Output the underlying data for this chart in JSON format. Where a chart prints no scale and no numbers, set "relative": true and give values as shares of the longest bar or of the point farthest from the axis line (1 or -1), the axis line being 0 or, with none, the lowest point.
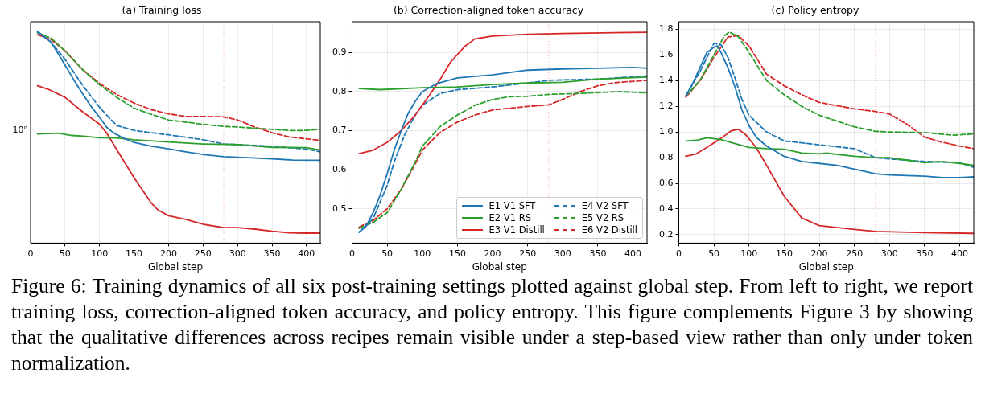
{
  "chart_data": [
    {
      "type": "line",
      "title": "(a) Training loss",
      "xlabel": "Global step",
      "relative": true,
      "grid": "x",
      "xlim": [
        0,
        420
      ],
      "xticks": [
        0,
        50,
        100,
        150,
        200,
        250,
        300,
        350,
        400
      ],
      "ref_lines": [
        {
          "axis": "x",
          "value": 280,
          "color": "#f4a0a0",
          "line_style": "dotted"
        }
      ],
      "annotations": [
        "10⁰"
      ],
      "series": [
        {
          "color": "#1f77b4",
          "line_style": "solid",
          "x": [
            10,
            30,
            40,
            50,
            62,
            75,
            87,
            100,
            110,
            120,
            135,
            150,
            175,
            200,
            225,
            250,
            280,
            320,
            350,
            380,
            420
          ],
          "values": [
            1.0,
            0.947,
            0.894,
            0.84,
            0.774,
            0.707,
            0.648,
            0.594,
            0.548,
            0.521,
            0.495,
            0.475,
            0.457,
            0.445,
            0.431,
            0.418,
            0.408,
            0.402,
            0.398,
            0.392,
            0.391
          ]
        },
        {
          "color": "#2ca02c",
          "line_style": "solid",
          "x": [
            10,
            40,
            60,
            80,
            100,
            125,
            150,
            200,
            250,
            300,
            350,
            400,
            420
          ],
          "values": [
            0.515,
            0.519,
            0.508,
            0.504,
            0.497,
            0.496,
            0.488,
            0.477,
            0.468,
            0.465,
            0.452,
            0.451,
            0.439
          ]
        },
        {
          "color": "#d62728",
          "line_style": "solid",
          "x": [
            10,
            25,
            50,
            75,
            100,
            110,
            125,
            150,
            175,
            185,
            200,
            225,
            250,
            280,
            300,
            325,
            350,
            375,
            400,
            420
          ],
          "values": [
            0.743,
            0.727,
            0.688,
            0.621,
            0.561,
            0.521,
            0.441,
            0.309,
            0.189,
            0.156,
            0.129,
            0.112,
            0.089,
            0.073,
            0.073,
            0.066,
            0.056,
            0.049,
            0.047,
            0.047
          ]
        },
        {
          "color": "#1f77b4",
          "line_style": "dashed",
          "x": [
            10,
            30,
            50,
            75,
            100,
            115,
            125,
            150,
            175,
            200,
            250,
            280,
            300,
            350,
            400,
            420
          ],
          "values": [
            0.997,
            0.947,
            0.867,
            0.747,
            0.641,
            0.588,
            0.555,
            0.532,
            0.521,
            0.511,
            0.488,
            0.468,
            0.465,
            0.457,
            0.444,
            0.431
          ]
        },
        {
          "color": "#2ca02c",
          "line_style": "dashed",
          "x": [
            10,
            30,
            50,
            75,
            100,
            125,
            150,
            175,
            200,
            250,
            280,
            300,
            350,
            380,
            400,
            420
          ],
          "values": [
            0.993,
            0.967,
            0.907,
            0.82,
            0.747,
            0.688,
            0.637,
            0.608,
            0.581,
            0.561,
            0.551,
            0.548,
            0.537,
            0.531,
            0.532,
            0.537
          ]
        },
        {
          "color": "#d62728",
          "line_style": "dashed",
          "x": [
            10,
            30,
            50,
            75,
            100,
            125,
            150,
            175,
            200,
            225,
            250,
            280,
            300,
            325,
            350,
            375,
            400,
            420
          ],
          "values": [
            0.984,
            0.96,
            0.907,
            0.82,
            0.754,
            0.701,
            0.661,
            0.63,
            0.61,
            0.598,
            0.598,
            0.596,
            0.581,
            0.548,
            0.521,
            0.501,
            0.492,
            0.485
          ]
        }
      ]
    },
    {
      "type": "line",
      "title": "(b) Correction-aligned token accuracy",
      "xlabel": "Global step",
      "grid": true,
      "legend": "bottom right",
      "xlim": [
        0,
        420
      ],
      "xticks": [
        0,
        50,
        100,
        150,
        200,
        250,
        300,
        350,
        400
      ],
      "ylim": [
        0.412,
        0.979
      ],
      "yticks": [
        0.5,
        0.6,
        0.7,
        0.8,
        0.9
      ],
      "ref_lines": [
        {
          "axis": "x",
          "value": 280,
          "color": "#f4a0a0",
          "line_style": "dotted"
        }
      ],
      "series": [
        {
          "name": "E1 V1 SFT",
          "color": "#1f77b4",
          "line_style": "solid",
          "x": [
            10,
            20,
            30,
            40,
            50,
            60,
            70,
            80,
            90,
            100,
            120,
            150,
            200,
            250,
            300,
            350,
            400,
            420
          ],
          "values": [
            0.44,
            0.455,
            0.49,
            0.535,
            0.59,
            0.65,
            0.7,
            0.745,
            0.775,
            0.8,
            0.82,
            0.835,
            0.843,
            0.855,
            0.858,
            0.86,
            0.862,
            0.86
          ]
        },
        {
          "name": "E2 V1 RS",
          "color": "#2ca02c",
          "line_style": "solid",
          "x": [
            10,
            40,
            100,
            150,
            200,
            250,
            300,
            350,
            420
          ],
          "values": [
            0.808,
            0.805,
            0.81,
            0.812,
            0.818,
            0.822,
            0.824,
            0.832,
            0.837
          ]
        },
        {
          "name": "E3 V1 Distill",
          "color": "#d62728",
          "line_style": "solid",
          "x": [
            10,
            30,
            50,
            70,
            90,
            110,
            125,
            140,
            160,
            175,
            200,
            250,
            300,
            420
          ],
          "values": [
            0.641,
            0.65,
            0.67,
            0.7,
            0.74,
            0.79,
            0.83,
            0.875,
            0.915,
            0.935,
            0.942,
            0.947,
            0.949,
            0.952
          ]
        },
        {
          "name": "E4 V2 SFT",
          "color": "#1f77b4",
          "line_style": "dashed",
          "x": [
            10,
            30,
            50,
            60,
            75,
            90,
            100,
            125,
            150,
            200,
            250,
            280,
            350,
            420
          ],
          "values": [
            0.44,
            0.475,
            0.56,
            0.62,
            0.69,
            0.74,
            0.765,
            0.795,
            0.805,
            0.812,
            0.822,
            0.829,
            0.832,
            0.84
          ]
        },
        {
          "name": "E5 V2 RS",
          "color": "#2ca02c",
          "line_style": "dashed",
          "x": [
            10,
            30,
            50,
            70,
            90,
            100,
            125,
            150,
            175,
            200,
            225,
            250,
            280,
            320,
            380,
            420
          ],
          "values": [
            0.45,
            0.465,
            0.49,
            0.55,
            0.62,
            0.66,
            0.71,
            0.74,
            0.765,
            0.78,
            0.787,
            0.788,
            0.793,
            0.795,
            0.8,
            0.797
          ]
        },
        {
          "name": "E6 V2 Distill",
          "color": "#d62728",
          "line_style": "dashed",
          "x": [
            10,
            30,
            50,
            70,
            90,
            100,
            125,
            150,
            175,
            200,
            250,
            280,
            300,
            325,
            350,
            375,
            420
          ],
          "values": [
            0.453,
            0.47,
            0.5,
            0.55,
            0.615,
            0.65,
            0.695,
            0.722,
            0.74,
            0.753,
            0.762,
            0.766,
            0.78,
            0.8,
            0.815,
            0.823,
            0.829
          ]
        }
      ]
    },
    {
      "type": "line",
      "title": "(c) Policy entropy",
      "xlabel": "Global step",
      "grid": true,
      "annotations": [
        "Figure 6: Training dynamics of all six post-training settings plotted against global step. From left to right, we report training loss, correction-aligned token accuracy, and policy entropy. This figure complements Figure 3 by showing that the qualitative differences across recipes remain visible under a step-based view rather than only under token normalization."
      ],
      "xlim": [
        0,
        420
      ],
      "xticks": [
        0,
        50,
        100,
        150,
        200,
        250,
        300,
        350,
        400
      ],
      "ylim": [
        0.134,
        1.859
      ],
      "yticks": [
        0.2,
        0.4,
        0.6,
        0.8,
        {
          "value": 1,
          "label": "1.0"
        },
        1.2,
        1.4,
        1.6,
        1.8
      ],
      "ref_lines": [
        {
          "axis": "x",
          "value": 280,
          "color": "#f4a0a0",
          "line_style": "dotted"
        }
      ],
      "series": [
        {
          "color": "#1f77b4",
          "line_style": "solid",
          "x": [
            10,
            20,
            30,
            40,
            50,
            55,
            60,
            70,
            80,
            90,
            100,
            110,
            125,
            150,
            175,
            200,
            225,
            250,
            280,
            300,
            350,
            375,
            400,
            420
          ],
          "values": [
            1.28,
            1.38,
            1.5,
            1.62,
            1.66,
            1.67,
            1.62,
            1.5,
            1.35,
            1.17,
            1.05,
            0.96,
            0.89,
            0.81,
            0.77,
            0.755,
            0.74,
            0.71,
            0.675,
            0.665,
            0.655,
            0.645,
            0.645,
            0.65
          ]
        },
        {
          "color": "#2ca02c",
          "line_style": "solid",
          "x": [
            10,
            25,
            40,
            60,
            80,
            100,
            125,
            150,
            175,
            200,
            210,
            250,
            280,
            300,
            325,
            350,
            375,
            400,
            420
          ],
          "values": [
            0.93,
            0.935,
            0.955,
            0.94,
            0.91,
            0.88,
            0.87,
            0.865,
            0.835,
            0.83,
            0.835,
            0.81,
            0.8,
            0.8,
            0.78,
            0.76,
            0.77,
            0.755,
            0.74
          ]
        },
        {
          "color": "#d62728",
          "line_style": "solid",
          "x": [
            10,
            25,
            40,
            60,
            75,
            85,
            95,
            110,
            125,
            150,
            175,
            200,
            250,
            280,
            350,
            420
          ],
          "values": [
            0.81,
            0.83,
            0.88,
            0.95,
            1.01,
            1.02,
            0.98,
            0.88,
            0.74,
            0.5,
            0.33,
            0.27,
            0.24,
            0.225,
            0.215,
            0.21
          ]
        },
        {
          "color": "#1f77b4",
          "line_style": "dashed",
          "x": [
            10,
            30,
            50,
            60,
            70,
            80,
            90,
            100,
            125,
            150,
            175,
            200,
            250,
            280,
            300,
            350,
            400,
            420
          ],
          "values": [
            1.28,
            1.47,
            1.69,
            1.68,
            1.58,
            1.42,
            1.25,
            1.13,
            1.0,
            0.93,
            0.915,
            0.9,
            0.87,
            0.8,
            0.79,
            0.77,
            0.76,
            0.725
          ]
        },
        {
          "color": "#2ca02c",
          "line_style": "dashed",
          "x": [
            10,
            30,
            50,
            65,
            72,
            85,
            100,
            125,
            150,
            175,
            200,
            250,
            280,
            300,
            350,
            390,
            420
          ],
          "values": [
            1.28,
            1.4,
            1.6,
            1.75,
            1.78,
            1.74,
            1.62,
            1.4,
            1.29,
            1.2,
            1.13,
            1.04,
            1.005,
            1.0,
            0.995,
            0.975,
            0.985
          ]
        },
        {
          "color": "#d62728",
          "line_style": "dashed",
          "x": [
            10,
            30,
            50,
            70,
            85,
            100,
            125,
            150,
            175,
            200,
            250,
            280,
            300,
            325,
            350,
            375,
            400,
            420
          ],
          "values": [
            1.27,
            1.4,
            1.58,
            1.74,
            1.75,
            1.67,
            1.45,
            1.36,
            1.29,
            1.23,
            1.18,
            1.16,
            1.14,
            1.06,
            0.96,
            0.92,
            0.89,
            0.87
          ]
        }
      ]
    }
  ]
}
